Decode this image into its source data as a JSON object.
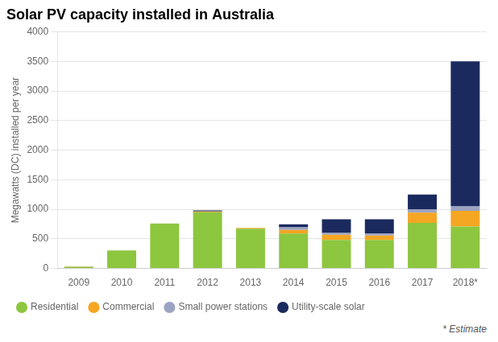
{
  "chart_data": {
    "type": "bar",
    "stacked": true,
    "title": "Solar PV capacity installed in Australia",
    "y_label": "Megawatts (DC) installed per year",
    "categories": [
      "2009",
      "2010",
      "2011",
      "2012",
      "2013",
      "2014",
      "2015",
      "2016",
      "2017",
      "2018*"
    ],
    "series": [
      {
        "name": "Residential",
        "color": "#8dc63f",
        "values": [
          30,
          305,
          760,
          950,
          670,
          590,
          480,
          480,
          770,
          710
        ]
      },
      {
        "name": "Commercial",
        "color": "#f5a623",
        "values": [
          5,
          0,
          0,
          15,
          15,
          60,
          90,
          75,
          175,
          265
        ]
      },
      {
        "name": "Small power stations",
        "color": "#9ba3c2",
        "values": [
          0,
          0,
          0,
          0,
          0,
          45,
          30,
          35,
          55,
          75
        ]
      },
      {
        "name": "Utility-scale solar",
        "color": "#1b2a5e",
        "values": [
          0,
          0,
          0,
          15,
          0,
          50,
          230,
          240,
          250,
          2450
        ]
      }
    ],
    "ylim": [
      0,
      4000
    ],
    "yticks": [
      0,
      500,
      1000,
      1500,
      2000,
      2500,
      3000,
      3500,
      4000
    ],
    "grid": true,
    "legend": "bottom",
    "annotations": [
      "* Estimate"
    ]
  }
}
